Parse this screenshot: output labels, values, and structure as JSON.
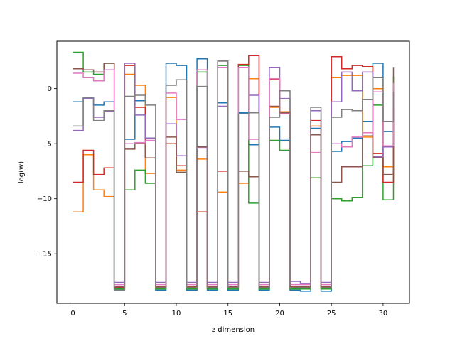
{
  "chart_data": {
    "type": "line",
    "drawstyle": "steps-post",
    "title": "",
    "xlabel": "z dimension",
    "ylabel": "log(w)",
    "xlim": [
      -1.55,
      32.55
    ],
    "ylim": [
      -19.5,
      4.3
    ],
    "xticks": [
      0,
      5,
      10,
      15,
      20,
      25,
      30
    ],
    "yticks": [
      -15,
      -10,
      -5,
      0
    ],
    "legend": "none",
    "grid": false,
    "x": [
      0,
      1,
      2,
      3,
      4,
      5,
      6,
      7,
      8,
      9,
      10,
      11,
      12,
      13,
      14,
      15,
      16,
      17,
      18,
      19,
      20,
      21,
      22,
      23,
      24,
      25,
      26,
      27,
      28,
      29,
      30,
      31
    ],
    "series": [
      {
        "color": "#1f77b4",
        "values": [
          -1.2,
          -0.8,
          -1.5,
          -1.2,
          -18.3,
          -4.6,
          -1.1,
          -4.5,
          -18.3,
          2.3,
          2.1,
          -18.3,
          2.7,
          -18.3,
          -1.3,
          -18.3,
          -2.2,
          -5.1,
          -18.3,
          -3.5,
          -4.7,
          -18.3,
          -18.4,
          -3.6,
          -18.4,
          -5.7,
          -4.8,
          -4.5,
          -3.0,
          2.3,
          -3.9,
          -2.4
        ]
      },
      {
        "color": "#ff7f0e",
        "values": [
          -11.2,
          -6.0,
          -9.2,
          -9.8,
          -18.2,
          1.3,
          0.3,
          -7.7,
          -18.2,
          -0.8,
          -7.4,
          -18.2,
          -6.4,
          -18.2,
          -9.4,
          -18.2,
          -8.6,
          0.9,
          -18.2,
          -1.7,
          -2.1,
          -18.2,
          -18.2,
          -3.4,
          -18.2,
          1.0,
          1.2,
          1.2,
          -4.4,
          0.0,
          -7.1,
          -2.9
        ]
      },
      {
        "color": "#2ca02c",
        "values": [
          3.3,
          1.5,
          1.3,
          2.3,
          -18.2,
          -9.2,
          -7.4,
          -8.6,
          -18.2,
          -5.0,
          -7.6,
          -18.2,
          1.5,
          -18.2,
          2.1,
          -18.2,
          2.1,
          -10.4,
          -18.2,
          -4.7,
          -5.6,
          -18.2,
          -18.2,
          -8.1,
          -18.2,
          -10.0,
          -10.2,
          -9.9,
          -7.0,
          -1.5,
          -10.1,
          1.1
        ]
      },
      {
        "color": "#d62728",
        "values": [
          -8.5,
          -5.6,
          -7.8,
          -7.2,
          -18.1,
          2.1,
          -1.7,
          -6.3,
          -18.1,
          -5.0,
          -7.0,
          -18.1,
          -11.2,
          -18.1,
          -7.5,
          -18.1,
          2.2,
          3.0,
          -18.1,
          0.8,
          -2.2,
          -18.1,
          -18.1,
          -2.9,
          -18.1,
          2.9,
          1.8,
          2.1,
          2.0,
          -5.9,
          -8.5,
          -1.8
        ]
      },
      {
        "color": "#9467bd",
        "values": [
          -3.8,
          -0.9,
          -2.6,
          -2.1,
          -17.6,
          2.3,
          -2.4,
          -4.5,
          -17.6,
          -3.2,
          -6.1,
          -17.6,
          -5.4,
          -17.6,
          -1.6,
          -17.6,
          1.9,
          -0.6,
          -17.6,
          1.9,
          -0.9,
          -17.5,
          -17.7,
          -2.0,
          -17.6,
          -1.2,
          1.5,
          -0.2,
          1.5,
          -6.2,
          -5.3,
          0.0
        ]
      },
      {
        "color": "#8c564b",
        "values": [
          1.8,
          1.7,
          1.5,
          2.3,
          -18.0,
          -5.5,
          -5.0,
          -6.3,
          -18.0,
          -4.4,
          -7.6,
          -18.0,
          -5.3,
          -18.0,
          2.5,
          -18.0,
          -7.5,
          -8.0,
          -18.0,
          -1.6,
          -2.2,
          -18.0,
          -18.0,
          -4.2,
          -18.0,
          -8.5,
          -7.1,
          -7.1,
          -4.3,
          -6.3,
          -7.8,
          1.9
        ]
      },
      {
        "color": "#e377c2",
        "values": [
          1.4,
          1.0,
          0.7,
          1.7,
          -17.8,
          -5.0,
          -4.9,
          -4.7,
          -17.8,
          -0.4,
          -2.8,
          -17.8,
          1.7,
          -17.8,
          1.9,
          -17.8,
          1.9,
          -4.6,
          -17.8,
          0.9,
          -2.3,
          -17.8,
          -17.8,
          -5.8,
          -17.8,
          -5.0,
          -5.3,
          -4.4,
          -4.0,
          -0.3,
          -5.2,
          0.5
        ]
      },
      {
        "color": "#7f7f7f",
        "values": [
          -3.4,
          -0.8,
          -2.9,
          -2.0,
          -18.3,
          -0.7,
          -0.6,
          -1.5,
          -18.1,
          0.3,
          0.8,
          -18.1,
          0.2,
          -18.1,
          2.5,
          -18.1,
          -2.3,
          -2.2,
          -18.1,
          -2.6,
          -0.2,
          -18.1,
          -18.1,
          -1.7,
          -18.1,
          -2.6,
          -1.9,
          -2.0,
          -1.0,
          1.0,
          -3.0,
          -0.3
        ]
      }
    ]
  }
}
